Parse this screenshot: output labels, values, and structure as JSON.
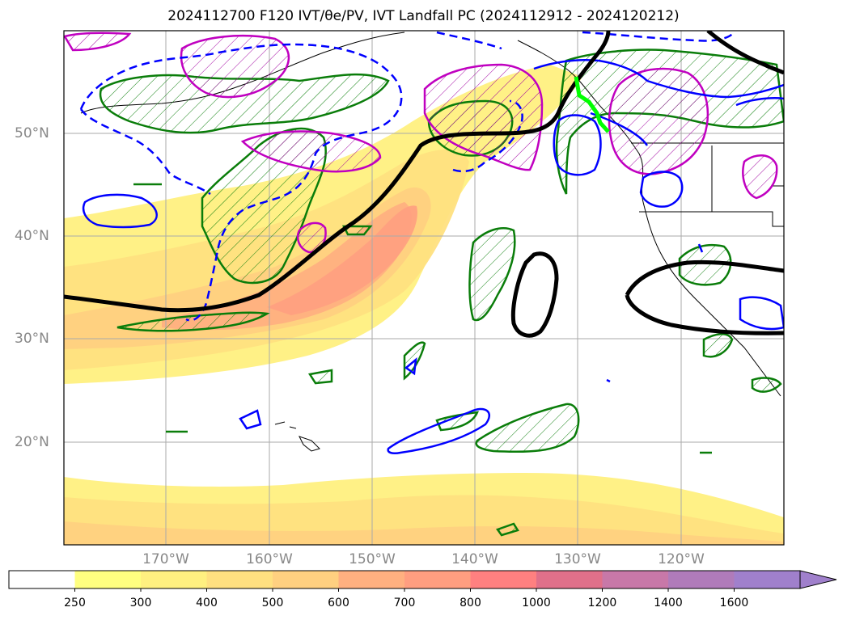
{
  "title": "2024112700 F120 IVT/θe/PV, IVT Landfall PC (2024112912 - 2024120212)",
  "lat_labels": [
    "50°N",
    "40°N",
    "30°N",
    "20°N"
  ],
  "lon_labels": [
    "170°W",
    "160°W",
    "150°W",
    "140°W",
    "130°W",
    "120°W"
  ],
  "colorbar": {
    "ticks": [
      "250",
      "300",
      "400",
      "500",
      "600",
      "700",
      "800",
      "1000",
      "1200",
      "1400",
      "1600"
    ],
    "colors": [
      "#ffffff",
      "#ffff80",
      "#fff080",
      "#ffe080",
      "#ffd080",
      "#ffb080",
      "#ff9e80",
      "#ff8080",
      "#e0708a",
      "#c878a8",
      "#b07bba",
      "#a080cc"
    ],
    "extend": "max"
  },
  "colors": {
    "green_contour": "#0a7d0a",
    "blue_contour": "#0000ff",
    "magenta_contour": "#c000c0",
    "black_contour": "#000000",
    "landfall_highlight": "#00ff00"
  }
}
